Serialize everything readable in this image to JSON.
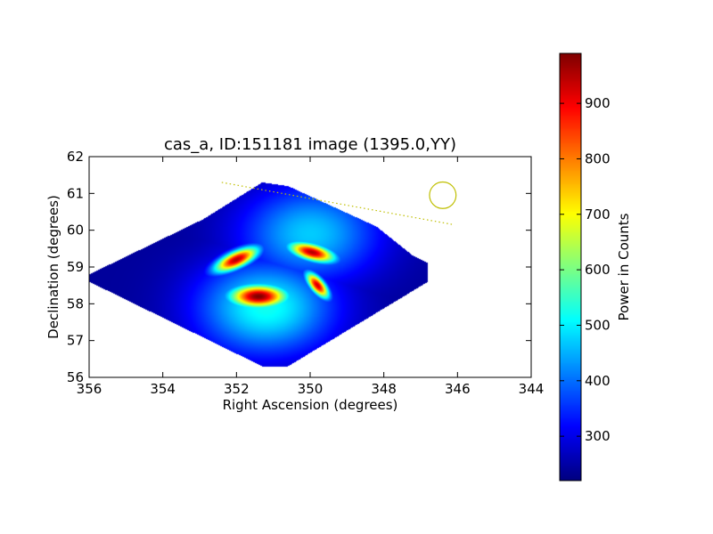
{
  "chart_data": {
    "type": "heatmap",
    "title": "cas_a, ID:151181 image (1395.0,YY)",
    "xlabel": "Right Ascension (degrees)",
    "ylabel": "Declination (degrees)",
    "xlim": [
      356,
      344
    ],
    "ylim": [
      56,
      62
    ],
    "x_ticks": [
      "356",
      "354",
      "352",
      "350",
      "348",
      "346",
      "344"
    ],
    "y_ticks": [
      "56",
      "57",
      "58",
      "59",
      "60",
      "61",
      "62"
    ],
    "colorbar": {
      "label": "Power in Counts",
      "range": [
        220,
        990
      ],
      "ticks": [
        "300",
        "400",
        "500",
        "600",
        "700",
        "800",
        "900"
      ],
      "colormap": "jet"
    },
    "field_of_view": {
      "ra": [
        356.2,
        352.9,
        351.3,
        350.6,
        348.2,
        347.2,
        346.8,
        346.8,
        350.6,
        351.3
      ],
      "dec": [
        58.7,
        60.3,
        61.3,
        61.2,
        60.1,
        59.3,
        59.1,
        58.6,
        56.3,
        56.3
      ],
      "background_value": 240
    },
    "peaks": [
      {
        "ra": 351.4,
        "dec": 58.2,
        "value": 990,
        "sx": 0.55,
        "sy": 0.22,
        "angle": 0
      },
      {
        "ra": 352.0,
        "dec": 59.2,
        "value": 950,
        "sx": 0.45,
        "sy": 0.16,
        "angle": -25
      },
      {
        "ra": 349.95,
        "dec": 59.4,
        "value": 950,
        "sx": 0.45,
        "sy": 0.16,
        "angle": 15
      },
      {
        "ra": 349.8,
        "dec": 58.5,
        "value": 930,
        "sx": 0.3,
        "sy": 0.13,
        "angle": 50
      }
    ],
    "halos": [
      {
        "ra": 351.2,
        "dec": 57.9,
        "value": 520,
        "sx": 1.3,
        "sy": 0.9
      },
      {
        "ra": 350.0,
        "dec": 59.9,
        "value": 470,
        "sx": 1.3,
        "sy": 0.9
      },
      {
        "ra": 351.8,
        "dec": 59.0,
        "value": 320,
        "sx": 0.9,
        "sy": 0.6
      }
    ],
    "circle_marker": {
      "ra": 346.4,
      "dec": 60.95,
      "radius_deg": 0.36,
      "color": "#bfbf00"
    },
    "dotted_line": {
      "ra": [
        352.4,
        346.1
      ],
      "dec": [
        61.3,
        60.15
      ],
      "color": "#bfbf00"
    }
  }
}
